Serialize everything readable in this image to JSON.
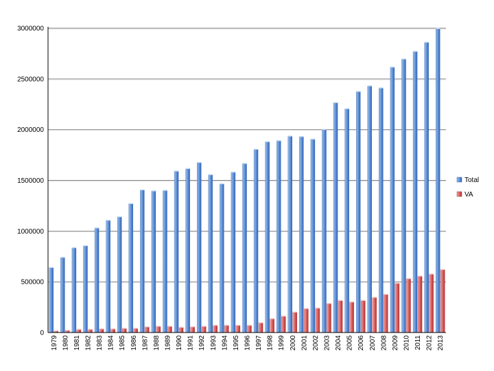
{
  "chart_data": {
    "type": "bar",
    "categories": [
      "1979",
      "1980",
      "1981",
      "1982",
      "1983",
      "1984",
      "1985",
      "1986",
      "1987",
      "1988",
      "1989",
      "1990",
      "1991",
      "1992",
      "1993",
      "1994",
      "1995",
      "1996",
      "1997",
      "1998",
      "1999",
      "2000",
      "2001",
      "2002",
      "2003",
      "2004",
      "2005",
      "2006",
      "2007",
      "2008",
      "2009",
      "2010",
      "2011",
      "2012",
      "2013"
    ],
    "series": [
      {
        "name": "Total",
        "color": "#4f81bd",
        "values": [
          640000,
          740000,
          835000,
          855000,
          1030000,
          1105000,
          1140000,
          1270000,
          1405000,
          1395000,
          1400000,
          1590000,
          1615000,
          1675000,
          1555000,
          1465000,
          1580000,
          1665000,
          1805000,
          1880000,
          1890000,
          1935000,
          1930000,
          1905000,
          2000000,
          2265000,
          2205000,
          2375000,
          2430000,
          2410000,
          2615000,
          2695000,
          2770000,
          2860000,
          2995000
        ]
      },
      {
        "name": "VA",
        "color": "#c0504d",
        "values": [
          15000,
          20000,
          30000,
          30000,
          35000,
          35000,
          40000,
          40000,
          55000,
          60000,
          60000,
          50000,
          55000,
          60000,
          70000,
          70000,
          70000,
          70000,
          95000,
          135000,
          160000,
          200000,
          235000,
          240000,
          285000,
          315000,
          300000,
          315000,
          345000,
          375000,
          485000,
          530000,
          555000,
          575000,
          620000
        ]
      }
    ],
    "yticks": [
      "0",
      "500000",
      "1000000",
      "1500000",
      "2000000",
      "2500000",
      "3000000"
    ],
    "ylim": [
      0,
      3000000
    ],
    "grid": true,
    "legend": "right",
    "xlabel": "",
    "ylabel": ""
  }
}
